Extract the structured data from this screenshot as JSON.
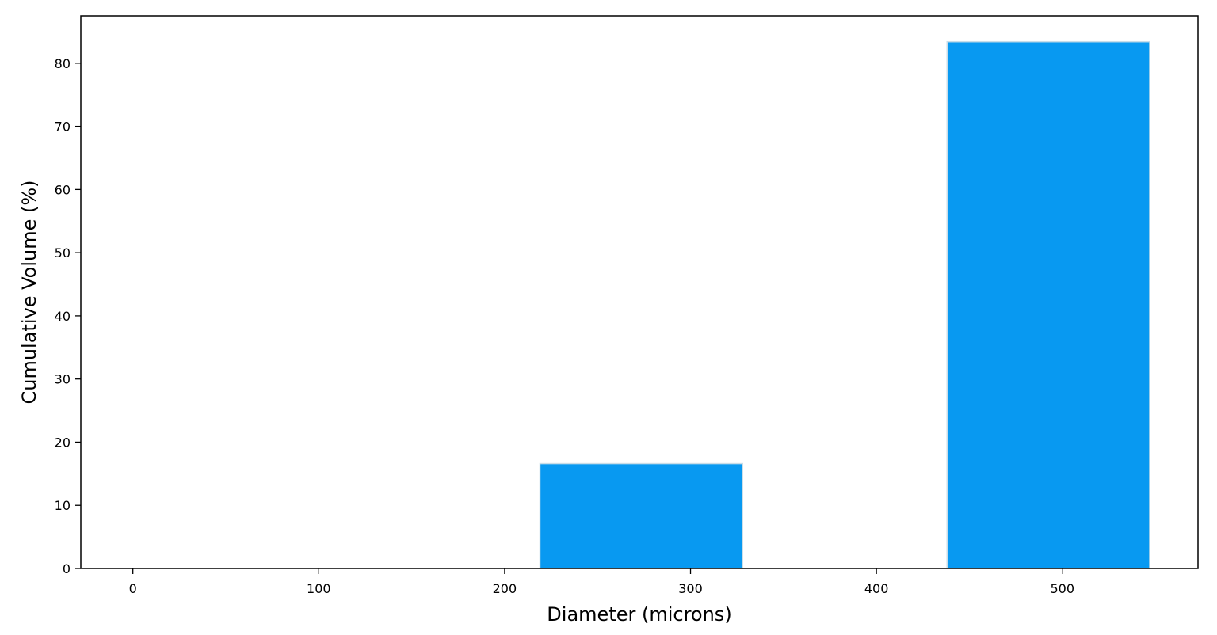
{
  "chart_data": {
    "type": "bar",
    "xlabel": "Diameter (microns)",
    "ylabel": "Cumulative Volume (%)",
    "xlim": [
      -28,
      573
    ],
    "ylim": [
      0,
      87.5
    ],
    "xticks": [
      0,
      100,
      200,
      300,
      400,
      500
    ],
    "yticks": [
      0,
      10,
      20,
      30,
      40,
      50,
      60,
      70,
      80
    ],
    "grid": false,
    "legend": "none",
    "bars": [
      {
        "x_start": 219,
        "x_end": 328,
        "value": 16.6
      },
      {
        "x_start": 438,
        "x_end": 547,
        "value": 83.4
      }
    ],
    "colors": {
      "bar_fill": "#0899f1",
      "bar_edge": "#c9dde8",
      "axes": "#000000"
    }
  }
}
